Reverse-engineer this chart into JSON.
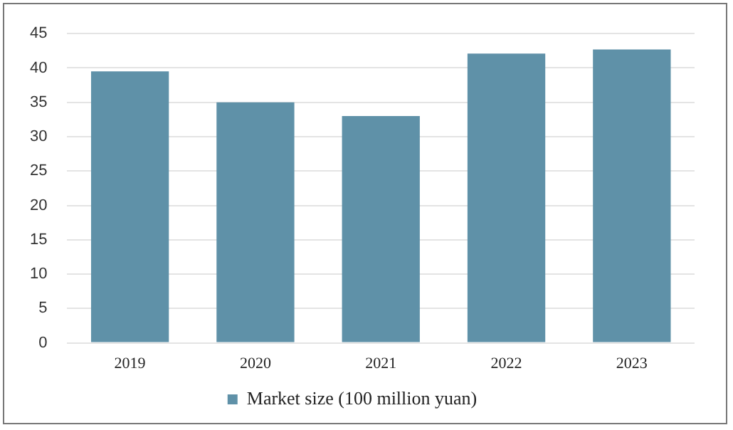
{
  "chart_data": {
    "type": "bar",
    "categories": [
      "2019",
      "2020",
      "2021",
      "2022",
      "2023"
    ],
    "series": [
      {
        "name": "Market size (100 million yuan)",
        "color": "#5f91a8",
        "values": [
          39.5,
          35,
          33,
          42.1,
          42.7
        ]
      }
    ],
    "ylim": [
      0,
      45
    ],
    "yticks": [
      0,
      5,
      10,
      15,
      20,
      25,
      30,
      35,
      40,
      45
    ],
    "grid": "y",
    "legend": "bottom"
  }
}
